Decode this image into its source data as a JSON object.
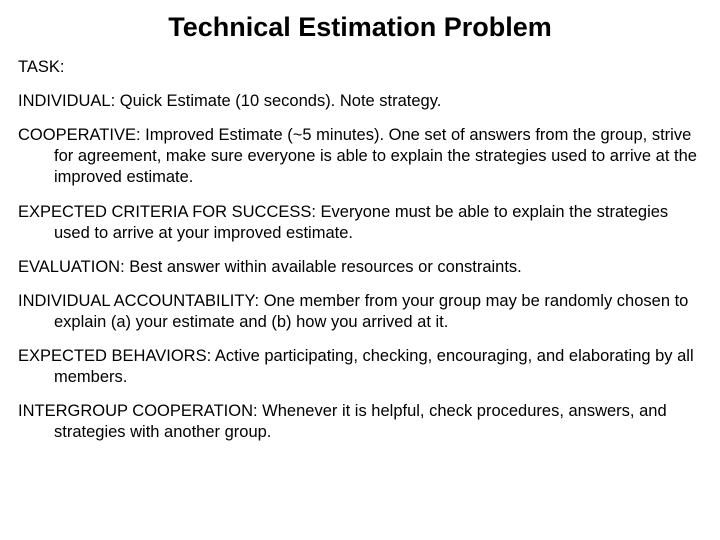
{
  "title": "Technical Estimation Problem",
  "sections": {
    "task": {
      "label": "TASK:",
      "text": ""
    },
    "individual": {
      "label": "INDIVIDUAL:",
      "text": " Quick Estimate (10 seconds).  Note strategy."
    },
    "cooperative": {
      "label": "COOPERATIVE:",
      "text": " Improved Estimate (~5 minutes). One set of answers from the group, strive for agreement, make sure everyone is able to explain the strategies used to arrive at the improved estimate."
    },
    "criteria": {
      "label": "EXPECTED CRITERIA FOR SUCCESS:",
      "text": "  Everyone must be able to explain the strategies used to arrive at your improved estimate."
    },
    "evaluation": {
      "label": "EVALUATION:",
      "text": "  Best answer within available resources or constraints."
    },
    "accountability": {
      "label": "INDIVIDUAL ACCOUNTABILITY:",
      "text": "  One member from your group may be randomly chosen to explain (a) your estimate and (b) how you arrived at it."
    },
    "behaviors": {
      "label": "EXPECTED BEHAVIORS:",
      "text": "  Active participating, checking, encouraging, and elaborating by all members."
    },
    "intergroup": {
      "label": "INTERGROUP COOPERATION:",
      "text": "  Whenever it is helpful, check procedures, answers, and strategies with another group."
    }
  },
  "typography": {
    "title_fontsize": 27,
    "body_fontsize": 16.5,
    "font_family": "Arial",
    "text_color": "#000000",
    "background_color": "#ffffff",
    "hanging_indent": 36
  }
}
